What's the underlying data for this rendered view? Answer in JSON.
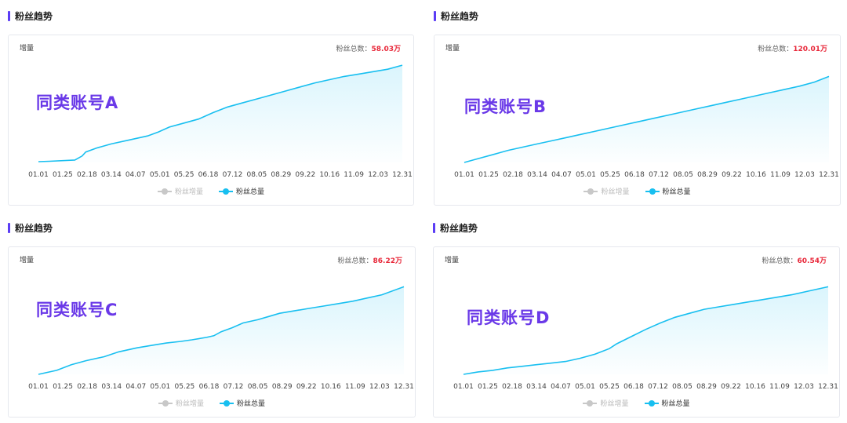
{
  "x_ticks": [
    "01.01",
    "01.25",
    "02.18",
    "03.14",
    "04.07",
    "05.01",
    "05.25",
    "06.18",
    "07.12",
    "08.05",
    "08.29",
    "09.22",
    "10.16",
    "11.09",
    "12.03",
    "12.31"
  ],
  "colors": {
    "line": "#18bff0",
    "legend_off": "#c8c8c8",
    "total_value": "#e8283a",
    "account_label": "#6a39e8",
    "title_bar": "#5b3df5"
  },
  "panels": [
    {
      "section_title": "粉丝趋势",
      "ylabel": "增量",
      "total_label": "粉丝总数：",
      "total_value": "58.03万",
      "account_label": "同类账号A",
      "legend": [
        {
          "label": "粉丝增量",
          "active": false
        },
        {
          "label": "粉丝总量",
          "active": true
        }
      ],
      "chart_data": {
        "type": "area",
        "xlabel": "",
        "ylabel": "增量",
        "series": [
          {
            "name": "粉丝总量",
            "points": [
              [
                0,
                1
              ],
              [
                0.03,
                1.5
              ],
              [
                0.1,
                3
              ],
              [
                0.12,
                8
              ],
              [
                0.13,
                13
              ],
              [
                0.16,
                18
              ],
              [
                0.2,
                23
              ],
              [
                0.25,
                28
              ],
              [
                0.3,
                33
              ],
              [
                0.33,
                38
              ],
              [
                0.36,
                44
              ],
              [
                0.4,
                49
              ],
              [
                0.44,
                54
              ],
              [
                0.48,
                62
              ],
              [
                0.52,
                69
              ],
              [
                0.56,
                74
              ],
              [
                0.6,
                79
              ],
              [
                0.64,
                84
              ],
              [
                0.68,
                89
              ],
              [
                0.72,
                94
              ],
              [
                0.76,
                99
              ],
              [
                0.8,
                103
              ],
              [
                0.84,
                107
              ],
              [
                0.88,
                110
              ],
              [
                0.92,
                113
              ],
              [
                0.96,
                116
              ],
              [
                1.0,
                121
              ]
            ]
          }
        ]
      }
    },
    {
      "section_title": "粉丝趋势",
      "ylabel": "增量",
      "total_label": "粉丝总数：",
      "total_value": "120.01万",
      "account_label": "同类账号B",
      "legend": [
        {
          "label": "粉丝增量",
          "active": false
        },
        {
          "label": "粉丝总量",
          "active": true
        }
      ],
      "chart_data": {
        "type": "area",
        "xlabel": "",
        "ylabel": "增量",
        "series": [
          {
            "name": "粉丝总量",
            "points": [
              [
                0,
                0
              ],
              [
                0.04,
                5
              ],
              [
                0.08,
                10
              ],
              [
                0.12,
                15
              ],
              [
                0.16,
                19
              ],
              [
                0.2,
                23
              ],
              [
                0.24,
                27
              ],
              [
                0.28,
                31
              ],
              [
                0.32,
                35
              ],
              [
                0.36,
                39
              ],
              [
                0.4,
                43
              ],
              [
                0.44,
                47
              ],
              [
                0.48,
                51
              ],
              [
                0.52,
                55
              ],
              [
                0.56,
                59
              ],
              [
                0.6,
                63
              ],
              [
                0.64,
                67
              ],
              [
                0.68,
                71
              ],
              [
                0.72,
                75
              ],
              [
                0.76,
                79
              ],
              [
                0.8,
                83
              ],
              [
                0.84,
                87
              ],
              [
                0.88,
                91
              ],
              [
                0.92,
                95
              ],
              [
                0.96,
                100
              ],
              [
                1.0,
                107
              ]
            ]
          }
        ]
      }
    },
    {
      "section_title": "粉丝趋势",
      "ylabel": "增量",
      "total_label": "粉丝总数：",
      "total_value": "86.22万",
      "account_label": "同类账号C",
      "legend": [
        {
          "label": "粉丝增量",
          "active": false
        },
        {
          "label": "粉丝总量",
          "active": true
        }
      ],
      "chart_data": {
        "type": "area",
        "xlabel": "",
        "ylabel": "增量",
        "series": [
          {
            "name": "粉丝总量",
            "points": [
              [
                0,
                0
              ],
              [
                0.05,
                5
              ],
              [
                0.09,
                12
              ],
              [
                0.13,
                17
              ],
              [
                0.18,
                22
              ],
              [
                0.22,
                28
              ],
              [
                0.27,
                33
              ],
              [
                0.31,
                36
              ],
              [
                0.35,
                39
              ],
              [
                0.39,
                41
              ],
              [
                0.42,
                43
              ],
              [
                0.46,
                46
              ],
              [
                0.48,
                48
              ],
              [
                0.5,
                53
              ],
              [
                0.53,
                58
              ],
              [
                0.56,
                64
              ],
              [
                0.6,
                68
              ],
              [
                0.63,
                72
              ],
              [
                0.66,
                76
              ],
              [
                0.7,
                79
              ],
              [
                0.74,
                82
              ],
              [
                0.78,
                85
              ],
              [
                0.82,
                88
              ],
              [
                0.86,
                91
              ],
              [
                0.9,
                95
              ],
              [
                0.94,
                99
              ],
              [
                1.0,
                109
              ]
            ]
          }
        ]
      }
    },
    {
      "section_title": "粉丝趋势",
      "ylabel": "增量",
      "total_label": "粉丝总数：",
      "total_value": "60.54万",
      "account_label": "同类账号D",
      "legend": [
        {
          "label": "粉丝增量",
          "active": false
        },
        {
          "label": "粉丝总量",
          "active": true
        }
      ],
      "chart_data": {
        "type": "area",
        "xlabel": "",
        "ylabel": "增量",
        "series": [
          {
            "name": "粉丝总量",
            "points": [
              [
                0,
                0
              ],
              [
                0.04,
                3
              ],
              [
                0.08,
                5
              ],
              [
                0.12,
                8
              ],
              [
                0.16,
                10
              ],
              [
                0.2,
                12
              ],
              [
                0.24,
                14
              ],
              [
                0.28,
                16
              ],
              [
                0.32,
                20
              ],
              [
                0.36,
                25
              ],
              [
                0.4,
                32
              ],
              [
                0.42,
                38
              ],
              [
                0.46,
                47
              ],
              [
                0.5,
                56
              ],
              [
                0.54,
                64
              ],
              [
                0.58,
                71
              ],
              [
                0.62,
                76
              ],
              [
                0.66,
                81
              ],
              [
                0.7,
                84
              ],
              [
                0.74,
                87
              ],
              [
                0.78,
                90
              ],
              [
                0.82,
                93
              ],
              [
                0.86,
                96
              ],
              [
                0.9,
                99
              ],
              [
                0.94,
                103
              ],
              [
                1.0,
                109
              ]
            ]
          }
        ]
      }
    }
  ]
}
